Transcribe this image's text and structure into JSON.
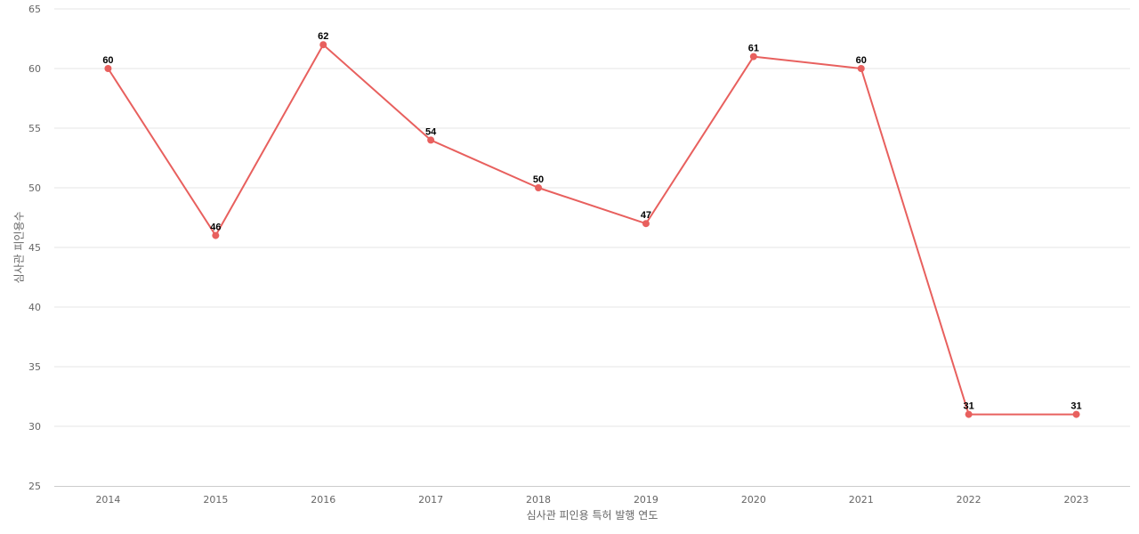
{
  "chart_data": {
    "type": "line",
    "xlabel": "심사관 피인용 특허 발행 연도",
    "ylabel": "심사관 피인용수",
    "categories": [
      "2014",
      "2015",
      "2016",
      "2017",
      "2018",
      "2019",
      "2020",
      "2021",
      "2022",
      "2023"
    ],
    "series": [
      {
        "values": [
          60,
          46,
          62,
          54,
          50,
          47,
          61,
          60,
          31,
          31
        ],
        "color": "#e8605e"
      }
    ],
    "ylim": [
      25,
      65
    ],
    "yticks": [
      25,
      30,
      35,
      40,
      45,
      50,
      55,
      60,
      65
    ],
    "grid": true,
    "data_labels": true
  }
}
